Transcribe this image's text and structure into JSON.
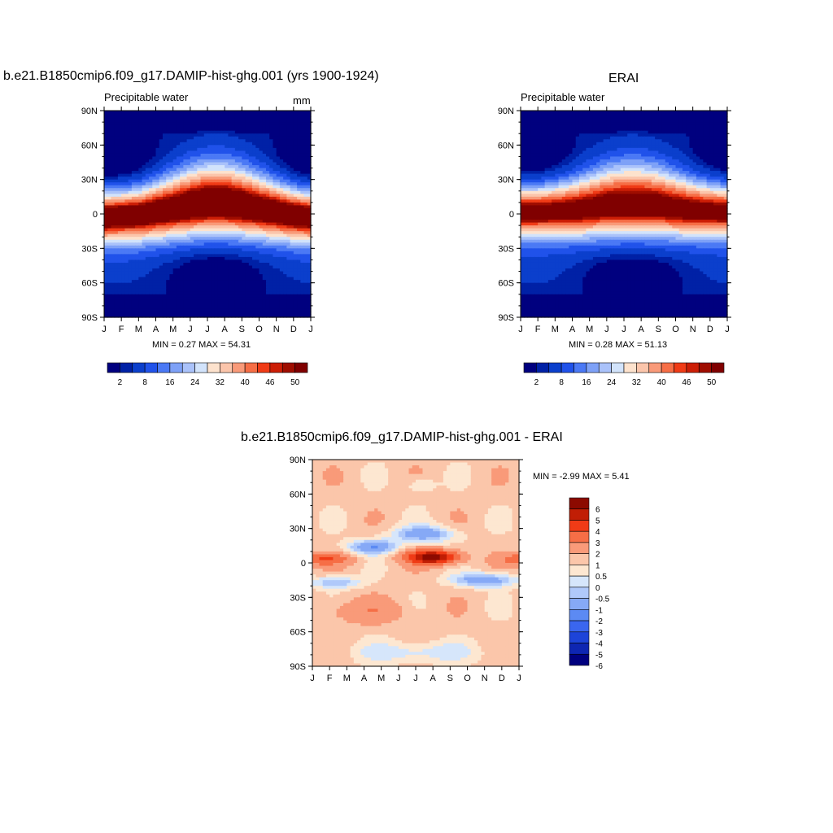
{
  "colors": {
    "abs_palette": [
      "#00007f",
      "#0021a6",
      "#0b3fcc",
      "#2052ea",
      "#4b79f5",
      "#7ea1f7",
      "#aac2fa",
      "#d2e3fb",
      "#fde2cd",
      "#fbc5ab",
      "#f99a79",
      "#f66e46",
      "#f03b16",
      "#cc1e06",
      "#9f0d00",
      "#800000"
    ],
    "diff_palette": [
      "#00007f",
      "#0e26b2",
      "#1d44d9",
      "#3a66ef",
      "#5c8af3",
      "#86a9f6",
      "#b0c9fa",
      "#d6e6fb",
      "#fde7d1",
      "#fbc6aa",
      "#f99a79",
      "#f66e46",
      "#f03b16",
      "#c11e05",
      "#8c0a00"
    ]
  },
  "chart_data": [
    {
      "type": "heatmap",
      "title": "b.e21.B1850cmip6.f09_g17.DAMIP-hist-ghg.001 (yrs 1900-1924)",
      "subtitle": "Precipitable water",
      "units": "mm",
      "x_tick_labels": [
        "J",
        "F",
        "M",
        "A",
        "M",
        "J",
        "J",
        "A",
        "S",
        "O",
        "N",
        "D",
        "J"
      ],
      "y_tick_labels": [
        "90N",
        "60N",
        "30N",
        "0",
        "30S",
        "60S",
        "90S"
      ],
      "ylim": [
        -90,
        90
      ],
      "min_text": "MIN =   0.27 MAX =  54.31",
      "colorbar_labels": [
        "2",
        "8",
        "16",
        "24",
        "32",
        "40",
        "46",
        "50"
      ],
      "levels": [
        2,
        4,
        8,
        12,
        16,
        20,
        24,
        28,
        32,
        36,
        40,
        44,
        46,
        48,
        50
      ],
      "field_params": {
        "itcz_lat_by_month": [
          -3,
          -2,
          -1,
          2,
          5,
          8,
          10,
          10,
          8,
          5,
          2,
          -1,
          -3
        ],
        "peak_mm": 54.31,
        "polar_min_mm": 0.27
      }
    },
    {
      "type": "heatmap",
      "title": "ERAI",
      "subtitle": "Precipitable water",
      "units": "",
      "x_tick_labels": [
        "J",
        "F",
        "M",
        "A",
        "M",
        "J",
        "J",
        "A",
        "S",
        "O",
        "N",
        "D",
        "J"
      ],
      "y_tick_labels": [
        "90N",
        "60N",
        "30N",
        "0",
        "30S",
        "60S",
        "90S"
      ],
      "ylim": [
        -90,
        90
      ],
      "min_text": "MIN =   0.28 MAX =  51.13",
      "colorbar_labels": [
        "2",
        "8",
        "16",
        "24",
        "32",
        "40",
        "46",
        "50"
      ],
      "levels": [
        2,
        4,
        8,
        12,
        16,
        20,
        24,
        28,
        32,
        36,
        40,
        44,
        46,
        48,
        50
      ],
      "field_params": {
        "itcz_lat_by_month": [
          2,
          2,
          3,
          4,
          6,
          8,
          9,
          9,
          8,
          6,
          4,
          3,
          2
        ],
        "peak_mm": 51.13,
        "polar_min_mm": 0.28
      }
    },
    {
      "type": "heatmap",
      "title": "b.e21.B1850cmip6.f09_g17.DAMIP-hist-ghg.001 - ERAI",
      "x_tick_labels": [
        "J",
        "F",
        "M",
        "A",
        "M",
        "J",
        "J",
        "A",
        "S",
        "O",
        "N",
        "D",
        "J"
      ],
      "y_tick_labels": [
        "90N",
        "60N",
        "30N",
        "0",
        "30S",
        "60S",
        "90S"
      ],
      "ylim": [
        -90,
        90
      ],
      "min_text": "MIN =  -2.99 MAX =   5.41",
      "colorbar_labels": [
        "6",
        "5",
        "4",
        "3",
        "2",
        "1",
        "0.5",
        "0",
        "-0.5",
        "-1",
        "-2",
        "-3",
        "-4",
        "-5",
        "-6"
      ],
      "levels": [
        -6,
        -5,
        -4,
        -3,
        -2,
        -1,
        -0.5,
        0,
        0.5,
        1,
        2,
        3,
        4,
        5,
        6
      ]
    }
  ]
}
